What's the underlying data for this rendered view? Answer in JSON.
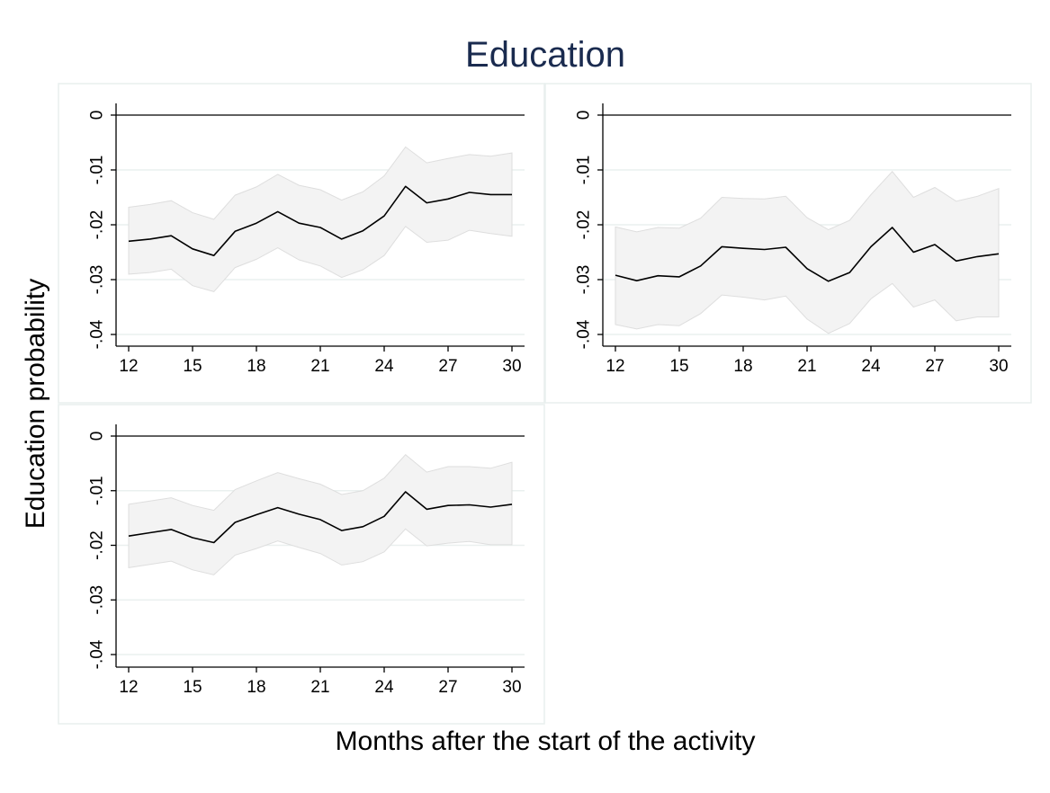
{
  "figure": {
    "title": "Education",
    "ylabel": "Education probability",
    "xlabel": "Months after the start of the activity"
  },
  "chart_data": [
    {
      "type": "line",
      "x": [
        12,
        13,
        14,
        15,
        16,
        17,
        18,
        19,
        20,
        21,
        22,
        23,
        24,
        25,
        26,
        27,
        28,
        29,
        30
      ],
      "series": [
        {
          "values": [
            -0.023,
            -0.0226,
            -0.022,
            -0.0244,
            -0.0256,
            -0.0212,
            -0.0197,
            -0.0176,
            -0.0197,
            -0.0205,
            -0.0226,
            -0.0211,
            -0.0184,
            -0.013,
            -0.016,
            -0.0153,
            -0.0141,
            -0.0145,
            -0.0145
          ],
          "lower": [
            -0.029,
            -0.0287,
            -0.0281,
            -0.0311,
            -0.0322,
            -0.0278,
            -0.0263,
            -0.0242,
            -0.0264,
            -0.0275,
            -0.0296,
            -0.0282,
            -0.0256,
            -0.0203,
            -0.0232,
            -0.0228,
            -0.021,
            -0.0216,
            -0.0221
          ],
          "upper": [
            -0.0168,
            -0.0163,
            -0.0156,
            -0.0178,
            -0.019,
            -0.0146,
            -0.0131,
            -0.0108,
            -0.0128,
            -0.0136,
            -0.0155,
            -0.014,
            -0.0111,
            -0.0058,
            -0.0087,
            -0.0079,
            -0.0072,
            -0.0075,
            -0.0069
          ]
        }
      ],
      "xticks": [
        12,
        15,
        18,
        21,
        24,
        27,
        30
      ],
      "yticks": [
        0,
        -0.01,
        -0.02,
        -0.03,
        -0.04
      ],
      "ytick_labels": [
        "0",
        "-.01",
        "-.02",
        "-.03",
        "-.04"
      ],
      "xlim": [
        12,
        30
      ],
      "ylim": [
        -0.042,
        0.002
      ],
      "grid": true
    },
    {
      "type": "line",
      "x": [
        12,
        13,
        14,
        15,
        16,
        17,
        18,
        19,
        20,
        21,
        22,
        23,
        24,
        25,
        26,
        27,
        28,
        29,
        30
      ],
      "series": [
        {
          "values": [
            -0.0292,
            -0.0302,
            -0.0293,
            -0.0295,
            -0.0275,
            -0.024,
            -0.0243,
            -0.0245,
            -0.0241,
            -0.028,
            -0.0303,
            -0.0287,
            -0.024,
            -0.0205,
            -0.025,
            -0.0236,
            -0.0266,
            -0.0258,
            -0.0253
          ],
          "lower": [
            -0.0382,
            -0.039,
            -0.0382,
            -0.0384,
            -0.0362,
            -0.0328,
            -0.0332,
            -0.0337,
            -0.033,
            -0.0372,
            -0.0398,
            -0.038,
            -0.0335,
            -0.0307,
            -0.035,
            -0.0337,
            -0.0375,
            -0.0368,
            -0.0368
          ],
          "upper": [
            -0.0204,
            -0.0213,
            -0.0205,
            -0.0206,
            -0.0188,
            -0.015,
            -0.0152,
            -0.0153,
            -0.0148,
            -0.0187,
            -0.0209,
            -0.0192,
            -0.0145,
            -0.0103,
            -0.015,
            -0.0132,
            -0.0157,
            -0.0148,
            -0.0134
          ]
        }
      ],
      "xticks": [
        12,
        15,
        18,
        21,
        24,
        27,
        30
      ],
      "yticks": [
        0,
        -0.01,
        -0.02,
        -0.03,
        -0.04
      ],
      "ytick_labels": [
        "0",
        "-.01",
        "-.02",
        "-.03",
        "-.04"
      ],
      "xlim": [
        12,
        30
      ],
      "ylim": [
        -0.042,
        0.002
      ],
      "grid": true
    },
    {
      "type": "line",
      "x": [
        12,
        13,
        14,
        15,
        16,
        17,
        18,
        19,
        20,
        21,
        22,
        23,
        24,
        25,
        26,
        27,
        28,
        29,
        30
      ],
      "series": [
        {
          "values": [
            -0.0183,
            -0.0177,
            -0.0171,
            -0.0186,
            -0.0195,
            -0.0158,
            -0.0144,
            -0.0131,
            -0.0143,
            -0.0153,
            -0.0173,
            -0.0166,
            -0.0147,
            -0.0102,
            -0.0134,
            -0.0127,
            -0.0126,
            -0.013,
            -0.0125
          ],
          "lower": [
            -0.0241,
            -0.0235,
            -0.0229,
            -0.0245,
            -0.0254,
            -0.0218,
            -0.0206,
            -0.0192,
            -0.0204,
            -0.0215,
            -0.0236,
            -0.023,
            -0.0212,
            -0.017,
            -0.0201,
            -0.0196,
            -0.0193,
            -0.0199,
            -0.0199
          ],
          "upper": [
            -0.0125,
            -0.0119,
            -0.0113,
            -0.0127,
            -0.0136,
            -0.0098,
            -0.0082,
            -0.0067,
            -0.0078,
            -0.0088,
            -0.0107,
            -0.01,
            -0.0077,
            -0.0034,
            -0.0066,
            -0.0056,
            -0.0056,
            -0.0059,
            -0.0048
          ]
        }
      ],
      "xticks": [
        12,
        15,
        18,
        21,
        24,
        27,
        30
      ],
      "yticks": [
        0,
        -0.01,
        -0.02,
        -0.03,
        -0.04
      ],
      "ytick_labels": [
        "0",
        "-.01",
        "-.02",
        "-.03",
        "-.04"
      ],
      "xlim": [
        12,
        30
      ],
      "ylim": [
        -0.042,
        0.002
      ],
      "grid": true
    }
  ]
}
